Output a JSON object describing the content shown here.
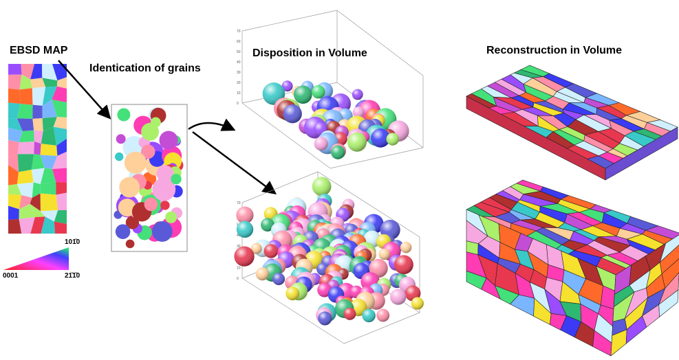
{
  "labels": {
    "ebsd_map": "EBSD MAP",
    "identification": "Identication of grains",
    "disposition": "Disposition in Volume",
    "reconstruction": "Reconstruction in Volume"
  },
  "color_key": {
    "top": "101̄0",
    "left": "0001",
    "right": "21̄1̄0"
  },
  "plots": [
    {
      "z_ticks": [
        "0",
        "10",
        "20",
        "30",
        "40",
        "50",
        "60",
        "70"
      ]
    },
    {
      "z_ticks": [
        "0",
        "10",
        "20",
        "30",
        "40",
        "50",
        "60",
        "70"
      ]
    }
  ]
}
